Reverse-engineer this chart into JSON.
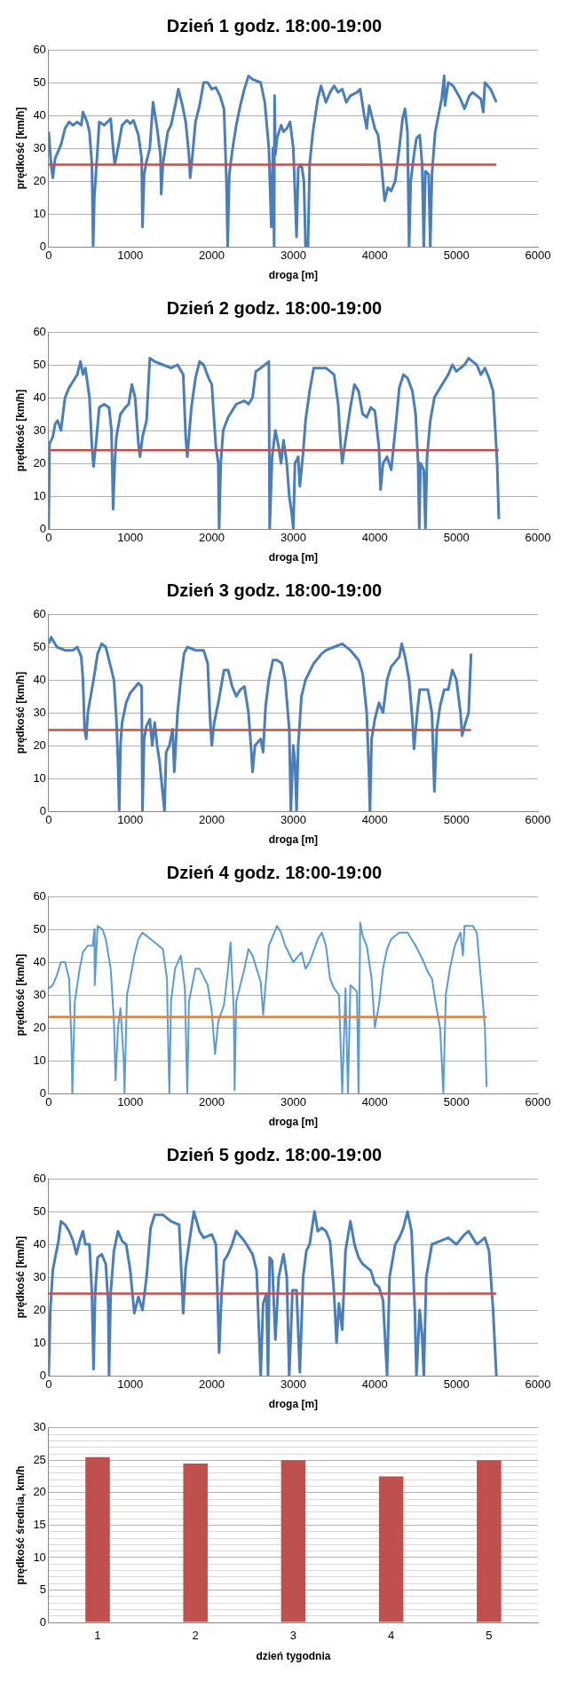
{
  "chart_data": [
    {
      "type": "line",
      "title": "Dzień 1 godz. 18:00-19:00",
      "xlabel": "droga [m]",
      "ylabel": "prędkość [km/h]",
      "xlim": [
        0,
        6000
      ],
      "ylim": [
        0,
        60
      ],
      "xticks": [
        0,
        1000,
        2000,
        3000,
        4000,
        5000,
        6000
      ],
      "yticks": [
        0,
        10,
        20,
        30,
        40,
        50,
        60
      ],
      "grid": "y",
      "x": [
        0,
        30,
        50,
        80,
        150,
        200,
        250,
        300,
        350,
        400,
        420,
        470,
        500,
        530,
        545,
        560,
        600,
        620,
        680,
        760,
        790,
        810,
        850,
        900,
        960,
        1000,
        1040,
        1100,
        1140,
        1150,
        1170,
        1200,
        1240,
        1280,
        1330,
        1370,
        1380,
        1400,
        1460,
        1500,
        1560,
        1590,
        1640,
        1680,
        1720,
        1735,
        1760,
        1800,
        1850,
        1900,
        1950,
        2000,
        2050,
        2100,
        2150,
        2180,
        2195,
        2215,
        2250,
        2300,
        2350,
        2400,
        2450,
        2500,
        2600,
        2650,
        2700,
        2730,
        2750,
        2765,
        2770,
        2780,
        2800,
        2850,
        2880,
        2920,
        2960,
        3000,
        3040,
        3060,
        3100,
        3130,
        3150,
        3180,
        3200,
        3240,
        3300,
        3340,
        3400,
        3450,
        3500,
        3550,
        3600,
        3650,
        3700,
        3780,
        3820,
        3870,
        3900,
        3930,
        3960,
        4000,
        4040,
        4080,
        4120,
        4160,
        4200,
        4250,
        4300,
        4340,
        4370,
        4400,
        4420,
        4440,
        4480,
        4510,
        4550,
        4580,
        4600,
        4620,
        4660,
        4680,
        4700,
        4740,
        4780,
        4820,
        4850,
        4860,
        4900,
        4960,
        5050,
        5100,
        5160,
        5200,
        5250,
        5300,
        5330,
        5350,
        5420,
        5490
      ],
      "series": [
        {
          "color": "#4a7ebb",
          "values": [
            35,
            25,
            21,
            27,
            31,
            36,
            38,
            37,
            38,
            37,
            41,
            38,
            35,
            25,
            0,
            15,
            30,
            38,
            37,
            39,
            30,
            25,
            30,
            37,
            38.5,
            37.5,
            38.5,
            34,
            27,
            6,
            22,
            26,
            30,
            44,
            36,
            28,
            16,
            25,
            35,
            37,
            44,
            48,
            43,
            38,
            28,
            21,
            27,
            38,
            43,
            50,
            50,
            48,
            48.5,
            46,
            42,
            20,
            0,
            22,
            29,
            37,
            43,
            48,
            52,
            51,
            50,
            44,
            30,
            6,
            30,
            0,
            46,
            28,
            33,
            37,
            35,
            36,
            38,
            30,
            3,
            24,
            25,
            20,
            0,
            0,
            25,
            35,
            45,
            49,
            44,
            47,
            49,
            47,
            48,
            44,
            46,
            47,
            48,
            40,
            36,
            43,
            40,
            36,
            34,
            25,
            14,
            18,
            17,
            20,
            30,
            39,
            42,
            35,
            0,
            20,
            28,
            33,
            34,
            25,
            0,
            23,
            22,
            0,
            22,
            35,
            40,
            45,
            52,
            43,
            50,
            49,
            45,
            42,
            46,
            47,
            46,
            45,
            41,
            50,
            48,
            44
          ]
        }
      ],
      "ref_lines": [
        {
          "axis": "y",
          "value": 25,
          "color": "#c0504d"
        }
      ]
    },
    {
      "type": "line",
      "title": "Dzień 2 godz. 18:00-19:00",
      "xlabel": "droga [m]",
      "ylabel": "prędkość [km/h]",
      "xlim": [
        0,
        6000
      ],
      "ylim": [
        0,
        60
      ],
      "xticks": [
        0,
        1000,
        2000,
        3000,
        4000,
        5000,
        6000
      ],
      "yticks": [
        0,
        10,
        20,
        30,
        40,
        50,
        60
      ],
      "grid": "y",
      "x": [
        0,
        10,
        50,
        80,
        110,
        150,
        200,
        250,
        300,
        350,
        390,
        420,
        450,
        500,
        530,
        550,
        580,
        620,
        680,
        740,
        770,
        790,
        810,
        830,
        880,
        940,
        980,
        1020,
        1060,
        1100,
        1120,
        1150,
        1200,
        1240,
        1300,
        1400,
        1500,
        1580,
        1650,
        1680,
        1700,
        1750,
        1800,
        1850,
        1900,
        1960,
        2000,
        2050,
        2080,
        2090,
        2110,
        2140,
        2200,
        2300,
        2400,
        2450,
        2500,
        2540,
        2600,
        2700,
        2710,
        2740,
        2780,
        2820,
        2850,
        2880,
        2920,
        2950,
        2980,
        3000,
        3020,
        3060,
        3080,
        3120,
        3150,
        3200,
        3250,
        3300,
        3400,
        3500,
        3550,
        3580,
        3600,
        3640,
        3700,
        3750,
        3800,
        3850,
        3900,
        3950,
        4000,
        4050,
        4070,
        4100,
        4150,
        4200,
        4250,
        4300,
        4350,
        4400,
        4460,
        4500,
        4530,
        4545,
        4560,
        4600,
        4620,
        4640,
        4680,
        4730,
        4800,
        4900,
        4950,
        5000,
        5100,
        5150,
        5200,
        5250,
        5300,
        5350,
        5400,
        5450,
        5500,
        5520
      ],
      "series": [
        {
          "color": "#4a7ebb",
          "values": [
            0,
            26,
            28,
            32,
            33,
            30,
            40,
            43,
            45,
            47,
            51,
            47,
            49,
            40,
            25,
            19,
            26,
            37,
            38,
            37,
            30,
            6,
            20,
            28,
            35,
            37,
            38,
            44,
            40,
            26,
            22,
            28,
            33,
            52,
            51,
            50,
            49,
            50,
            47,
            28,
            22,
            37,
            46,
            51,
            50,
            46,
            44,
            25,
            20,
            0,
            20,
            30,
            34,
            38,
            39,
            38,
            40,
            48,
            49,
            51,
            0,
            22,
            30,
            25,
            20,
            27,
            20,
            10,
            5,
            0,
            20,
            22,
            13,
            23,
            33,
            42,
            49,
            49,
            49,
            47,
            38,
            26,
            20,
            27,
            37,
            44,
            42,
            35,
            34,
            37,
            36,
            25,
            12,
            20,
            22,
            18,
            30,
            43,
            47,
            46,
            42,
            35,
            20,
            0,
            20,
            18,
            0,
            22,
            33,
            40,
            43,
            47,
            50,
            48,
            50,
            52,
            51,
            50,
            47,
            49,
            46,
            42,
            20,
            3
          ]
        }
      ],
      "ref_lines": [
        {
          "axis": "y",
          "value": 24,
          "color": "#c0504d"
        }
      ]
    },
    {
      "type": "line",
      "title": "Dzień 3 godz. 18:00-19:00",
      "xlabel": "droga [m]",
      "ylabel": "prędkość [km/h]",
      "xlim": [
        0,
        6000
      ],
      "ylim": [
        0,
        60
      ],
      "xticks": [
        0,
        1000,
        2000,
        3000,
        4000,
        5000,
        6000
      ],
      "yticks": [
        0,
        10,
        20,
        30,
        40,
        50,
        60
      ],
      "grid": "y",
      "x": [
        0,
        30,
        100,
        200,
        300,
        350,
        400,
        420,
        440,
        460,
        480,
        550,
        600,
        650,
        700,
        750,
        800,
        830,
        850,
        865,
        880,
        900,
        950,
        1000,
        1100,
        1140,
        1150,
        1170,
        1200,
        1240,
        1270,
        1300,
        1330,
        1360,
        1400,
        1420,
        1440,
        1480,
        1520,
        1540,
        1580,
        1620,
        1660,
        1700,
        1800,
        1900,
        1950,
        1980,
        2000,
        2030,
        2080,
        2150,
        2200,
        2250,
        2300,
        2350,
        2400,
        2450,
        2480,
        2500,
        2530,
        2600,
        2630,
        2660,
        2700,
        2750,
        2800,
        2860,
        2900,
        2950,
        2970,
        3000,
        3020,
        3040,
        3060,
        3100,
        3150,
        3250,
        3350,
        3400,
        3500,
        3600,
        3700,
        3800,
        3850,
        3900,
        3930,
        3940,
        3960,
        4000,
        4050,
        4100,
        4150,
        4200,
        4300,
        4330,
        4370,
        4420,
        4460,
        4480,
        4520,
        4550,
        4650,
        4700,
        4730,
        4760,
        4800,
        4850,
        4900,
        4950,
        5000,
        5050,
        5070,
        5100,
        5150,
        5180
      ],
      "series": [
        {
          "color": "#4a7ebb",
          "values": [
            51,
            53,
            50,
            49,
            49,
            50,
            47,
            40,
            25,
            22,
            30,
            40,
            48,
            51,
            50,
            45,
            40,
            28,
            15,
            0,
            20,
            27,
            33,
            36,
            39,
            38,
            0,
            22,
            26,
            28,
            20,
            27,
            20,
            15,
            5,
            0,
            18,
            20,
            25,
            12,
            30,
            40,
            48,
            50,
            49,
            49,
            45,
            28,
            20,
            27,
            33,
            43,
            43,
            38,
            35,
            37,
            38,
            30,
            20,
            12,
            20,
            22,
            18,
            32,
            40,
            46,
            46,
            45,
            40,
            25,
            0,
            20,
            15,
            0,
            20,
            35,
            40,
            45,
            48,
            49,
            50,
            51,
            49,
            46,
            42,
            30,
            10,
            0,
            22,
            28,
            33,
            30,
            40,
            44,
            47,
            51,
            47,
            40,
            28,
            19,
            30,
            37,
            37,
            30,
            6,
            25,
            32,
            37,
            37,
            43,
            40,
            30,
            23,
            26,
            30,
            48
          ]
        }
      ],
      "ref_lines": [
        {
          "axis": "y",
          "value": 24.7,
          "color": "#c0504d"
        }
      ]
    },
    {
      "type": "line",
      "title": "Dzień 4 godz. 18:00-19:00",
      "xlabel": "droga [m]",
      "ylabel": "prędkość [km/h]",
      "xlim": [
        0,
        6000
      ],
      "ylim": [
        0,
        60
      ],
      "xticks": [
        0,
        1000,
        2000,
        3000,
        4000,
        5000,
        6000
      ],
      "yticks": [
        0,
        10,
        20,
        30,
        40,
        50,
        60
      ],
      "grid": "y",
      "x": [
        0,
        50,
        100,
        150,
        200,
        250,
        280,
        290,
        320,
        380,
        420,
        480,
        540,
        560,
        565,
        600,
        660,
        700,
        760,
        800,
        820,
        850,
        880,
        920,
        930,
        960,
        1000,
        1050,
        1100,
        1150,
        1300,
        1400,
        1450,
        1470,
        1480,
        1500,
        1550,
        1620,
        1670,
        1690,
        1700,
        1720,
        1800,
        1850,
        1950,
        2000,
        2040,
        2080,
        2150,
        2200,
        2230,
        2270,
        2280,
        2300,
        2400,
        2450,
        2500,
        2600,
        2630,
        2660,
        2700,
        2800,
        2850,
        2900,
        3000,
        3100,
        3150,
        3200,
        3300,
        3350,
        3400,
        3450,
        3500,
        3560,
        3600,
        3640,
        3670,
        3700,
        3780,
        3800,
        3820,
        3850,
        3900,
        3960,
        4000,
        4050,
        4100,
        4150,
        4200,
        4300,
        4400,
        4500,
        4600,
        4650,
        4700,
        4750,
        4800,
        4840,
        4870,
        4920,
        4980,
        5050,
        5080,
        5100,
        5200,
        5250,
        5300,
        5350,
        5370
      ],
      "series": [
        {
          "color": "#5b9bd5",
          "values": [
            32,
            33,
            36,
            40,
            40,
            35,
            15,
            0,
            28,
            38,
            43,
            45,
            45,
            50,
            33,
            51,
            50,
            47,
            38,
            22,
            4,
            20,
            26,
            10,
            0,
            30,
            35,
            42,
            47,
            49,
            46,
            44,
            35,
            10,
            0,
            28,
            38,
            42,
            32,
            10,
            0,
            28,
            38,
            38,
            33,
            25,
            12,
            22,
            27,
            38,
            46,
            25,
            1,
            28,
            38,
            44,
            42,
            34,
            24,
            33,
            45,
            51,
            49,
            45,
            40,
            43,
            38,
            40,
            47,
            49,
            45,
            35,
            32,
            30,
            0,
            32,
            0,
            33,
            31,
            0,
            52,
            48,
            45,
            35,
            20,
            27,
            38,
            44,
            47,
            49,
            49,
            45,
            40,
            37,
            35,
            27,
            20,
            0,
            30,
            38,
            45,
            49,
            42,
            51,
            51,
            49,
            35,
            20,
            2
          ]
        }
      ],
      "ref_lines": [
        {
          "axis": "y",
          "value": 23.3,
          "color": "#ed7d31"
        }
      ]
    },
    {
      "type": "line",
      "title": "Dzień 5 godz. 18:00-19:00",
      "xlabel": "droga [m]",
      "ylabel": "prędkość [km/h]",
      "xlim": [
        0,
        6000
      ],
      "ylim": [
        0,
        60
      ],
      "xticks": [
        0,
        1000,
        2000,
        3000,
        4000,
        5000,
        6000
      ],
      "yticks": [
        0,
        10,
        20,
        30,
        40,
        50,
        60
      ],
      "grid": "y",
      "x": [
        0,
        20,
        50,
        80,
        120,
        150,
        200,
        250,
        300,
        340,
        380,
        420,
        450,
        500,
        530,
        550,
        570,
        600,
        650,
        700,
        730,
        740,
        760,
        800,
        850,
        900,
        950,
        1000,
        1050,
        1100,
        1150,
        1200,
        1250,
        1300,
        1400,
        1500,
        1600,
        1630,
        1650,
        1680,
        1720,
        1780,
        1850,
        1900,
        2000,
        2050,
        2070,
        2090,
        2120,
        2150,
        2200,
        2250,
        2300,
        2400,
        2500,
        2550,
        2600,
        2630,
        2670,
        2690,
        2710,
        2740,
        2780,
        2820,
        2880,
        2920,
        2950,
        2990,
        3040,
        3080,
        3120,
        3160,
        3200,
        3260,
        3300,
        3350,
        3400,
        3450,
        3500,
        3530,
        3560,
        3600,
        3640,
        3700,
        3750,
        3800,
        3850,
        3950,
        4000,
        4050,
        4100,
        4150,
        4180,
        4250,
        4300,
        4350,
        4400,
        4450,
        4490,
        4510,
        4550,
        4580,
        4600,
        4630,
        4700,
        4800,
        4900,
        5000,
        5100,
        5150,
        5200,
        5250,
        5300,
        5350,
        5400,
        5450,
        5490
      ],
      "series": [
        {
          "color": "#4a7ebb",
          "values": [
            0,
            20,
            32,
            36,
            41,
            47,
            46,
            44,
            41,
            37,
            41,
            44,
            40,
            40,
            25,
            2,
            25,
            36,
            37,
            34,
            22,
            0,
            25,
            38,
            44,
            41,
            40,
            32,
            19,
            24,
            20,
            30,
            45,
            49,
            49,
            47,
            46,
            30,
            19,
            33,
            40,
            50,
            44,
            42,
            43,
            40,
            25,
            7,
            25,
            35,
            37,
            40,
            44,
            41,
            37,
            32,
            0,
            22,
            25,
            0,
            36,
            35,
            11,
            30,
            37,
            30,
            0,
            26,
            26,
            1,
            30,
            38,
            40,
            50,
            44,
            45,
            44,
            41,
            25,
            10,
            22,
            14,
            38,
            47,
            40,
            36,
            34,
            32,
            28,
            27,
            23,
            0,
            30,
            40,
            42,
            45,
            50,
            44,
            20,
            0,
            20,
            12,
            0,
            30,
            40,
            41,
            42,
            40,
            43,
            44,
            42,
            40,
            41,
            42,
            38,
            20,
            0
          ]
        }
      ],
      "ref_lines": [
        {
          "axis": "y",
          "value": 25,
          "color": "#c0504d"
        }
      ]
    },
    {
      "type": "bar",
      "xlabel": "dzień tygodnia",
      "ylabel": "prędkość średnia, km/h",
      "categories": [
        "1",
        "2",
        "3",
        "4",
        "5"
      ],
      "values": [
        25.5,
        24.5,
        25,
        22.5,
        25
      ],
      "color": "#c0504d",
      "ylim": [
        0,
        30
      ],
      "grid": "y",
      "yticks": [
        0,
        {
          "value": 1,
          "label": null
        },
        {
          "value": 2,
          "label": null
        },
        {
          "value": 3,
          "label": null
        },
        {
          "value": 4,
          "label": null
        },
        5,
        {
          "value": 6,
          "label": null
        },
        {
          "value": 7,
          "label": null
        },
        {
          "value": 8,
          "label": null
        },
        {
          "value": 9,
          "label": null
        },
        10,
        {
          "value": 11,
          "label": null
        },
        {
          "value": 12,
          "label": null
        },
        {
          "value": 13,
          "label": null
        },
        {
          "value": 14,
          "label": null
        },
        15,
        {
          "value": 16,
          "label": null
        },
        {
          "value": 17,
          "label": null
        },
        {
          "value": 18,
          "label": null
        },
        {
          "value": 19,
          "label": null
        },
        20,
        {
          "value": 21,
          "label": null
        },
        {
          "value": 22,
          "label": null
        },
        {
          "value": 23,
          "label": null
        },
        {
          "value": 24,
          "label": null
        },
        25,
        {
          "value": 26,
          "label": null
        },
        {
          "value": 27,
          "label": null
        },
        {
          "value": 28,
          "label": null
        },
        {
          "value": 29,
          "label": null
        },
        30
      ]
    }
  ]
}
